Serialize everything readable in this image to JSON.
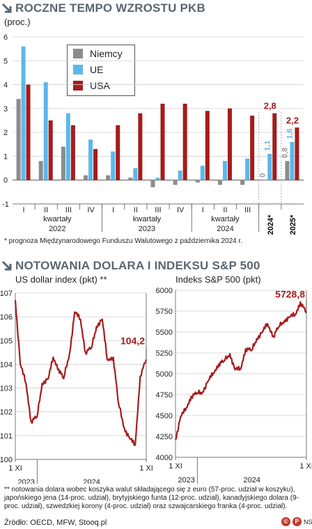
{
  "section1": {
    "title": "ROCZNE TEMPO WZROSTU PKB",
    "unit": "(proc.)",
    "footnote": "* prognoza Międzynarodowego Funduszu Walutowego z października 2024 r."
  },
  "section2": {
    "title": "NOTOWANIA DOLARA I INDEKSU S&P 500",
    "footnote": "** notowania dolara wobec koszyka walut składającego się z euro (57-proc. udział w koszyku), japońskiego jena (14-proc. udział), brytyjskiego funta (12-proc. udział), kanadyjskiego dolara (9-proc. udział), szwedzkiej korony (4-proc. udział) oraz szwajcarskiego franka (4-proc. udział)."
  },
  "source": "Źródło: OECD, MFW, Stooq.pl",
  "credit": "NS",
  "colors": {
    "niemcy": "#8c8c8c",
    "ue": "#5bb8ea",
    "usa": "#a51c1c",
    "title": "#5a6670"
  },
  "chart_data": [
    {
      "type": "bar",
      "title": "ROCZNE TEMPO WZROSTU PKB",
      "ylabel": "(proc.)",
      "ylim": [
        -1,
        6
      ],
      "yticks": [
        6,
        5,
        4,
        3,
        2,
        1,
        0,
        -1
      ],
      "grid": true,
      "legend": "top-left",
      "categories": [
        "I",
        "II",
        "III",
        "IV",
        "I",
        "II",
        "III",
        "IV",
        "I",
        "II",
        "III",
        "2024*",
        "2025*"
      ],
      "groups": [
        {
          "label": "kwartały",
          "year": "2022"
        },
        {
          "label": "kwartały",
          "year": "2023"
        },
        {
          "label": "kwartały",
          "year": "2024"
        }
      ],
      "series": [
        {
          "name": "Niemcy",
          "values": [
            3.4,
            0.8,
            1.4,
            0.2,
            0.2,
            0.1,
            -0.3,
            -0.2,
            -0.1,
            -0.2,
            -0.2,
            0.0,
            0.8
          ]
        },
        {
          "name": "UE",
          "values": [
            5.6,
            4.1,
            2.8,
            1.7,
            1.2,
            0.5,
            0.1,
            0.4,
            0.6,
            0.8,
            0.9,
            1.1,
            1.6
          ]
        },
        {
          "name": "USA",
          "values": [
            4.0,
            2.5,
            2.3,
            1.3,
            2.3,
            2.8,
            3.2,
            3.2,
            2.9,
            3.0,
            2.7,
            2.8,
            2.2
          ]
        }
      ],
      "data_labels": {
        "2024*": [
          "0",
          "1,1",
          "2,8"
        ],
        "2025*": [
          "0,8",
          "1,6",
          "2,2"
        ]
      }
    },
    {
      "type": "line",
      "title": "US dollar index (pkt) **",
      "ylim": [
        100,
        107
      ],
      "yticks": [
        107,
        106,
        105,
        104,
        103,
        102,
        101,
        100
      ],
      "xticks": [
        "1 XI",
        "1 XI"
      ],
      "xgroups": [
        "2023",
        "2024"
      ],
      "last_value_label": "104,2",
      "x": [
        "2023-11-01",
        "2023-11-15",
        "2023-12-01",
        "2023-12-15",
        "2024-01-01",
        "2024-01-15",
        "2024-02-01",
        "2024-02-15",
        "2024-03-01",
        "2024-03-15",
        "2024-04-01",
        "2024-04-15",
        "2024-05-01",
        "2024-05-15",
        "2024-06-01",
        "2024-06-15",
        "2024-07-01",
        "2024-07-15",
        "2024-08-01",
        "2024-08-15",
        "2024-09-01",
        "2024-09-15",
        "2024-10-01",
        "2024-10-15",
        "2024-11-01"
      ],
      "values": [
        106.7,
        104.0,
        103.2,
        101.6,
        101.8,
        103.2,
        103.4,
        104.3,
        103.8,
        103.4,
        104.5,
        106.2,
        105.9,
        104.5,
        104.7,
        105.6,
        105.9,
        104.2,
        104.3,
        102.4,
        101.3,
        100.9,
        100.6,
        103.5,
        104.2
      ]
    },
    {
      "type": "line",
      "title": "Indeks S&P 500 (pkt)",
      "ylim": [
        4000,
        6000
      ],
      "yticks": [
        6000,
        5750,
        5500,
        5250,
        5000,
        4750,
        4500,
        4250,
        4000
      ],
      "xticks": [
        "1 XI",
        "1 XI"
      ],
      "xgroups": [
        "2023",
        "2024"
      ],
      "last_value_label": "5728,8",
      "x": [
        "2023-11-01",
        "2023-11-15",
        "2023-12-01",
        "2023-12-15",
        "2024-01-01",
        "2024-01-15",
        "2024-02-01",
        "2024-02-15",
        "2024-03-01",
        "2024-03-15",
        "2024-04-01",
        "2024-04-15",
        "2024-05-01",
        "2024-05-15",
        "2024-06-01",
        "2024-06-15",
        "2024-07-01",
        "2024-07-15",
        "2024-08-01",
        "2024-08-15",
        "2024-09-01",
        "2024-09-15",
        "2024-10-01",
        "2024-10-15",
        "2024-11-01"
      ],
      "values": [
        4210,
        4480,
        4590,
        4730,
        4770,
        4780,
        4920,
        5010,
        5120,
        5150,
        5240,
        5050,
        5060,
        5300,
        5280,
        5420,
        5500,
        5600,
        5450,
        5560,
        5640,
        5680,
        5710,
        5860,
        5728.8
      ]
    }
  ]
}
